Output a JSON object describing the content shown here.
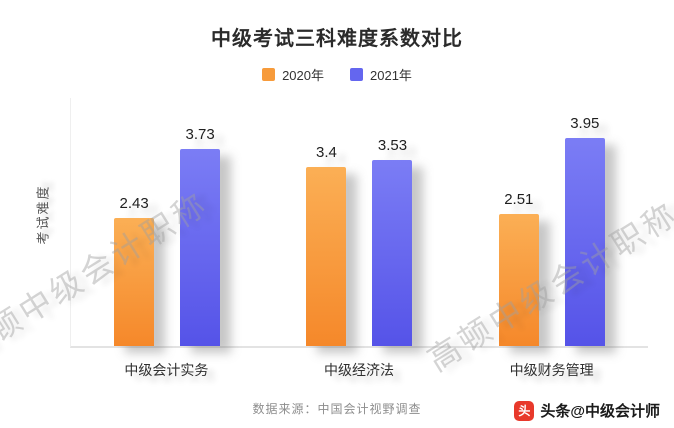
{
  "chart_data": {
    "type": "bar",
    "title": "中级考试三科难度系数对比",
    "ylabel": "考试难度",
    "categories": [
      "中级会计实务",
      "中级经济法",
      "中级财务管理"
    ],
    "series": [
      {
        "name": "2020年",
        "values": [
          2.43,
          3.4,
          2.51
        ],
        "color": "#F79B3B",
        "color_top": "#FBAF55",
        "color_bottom": "#F5882A"
      },
      {
        "name": "2021年",
        "values": [
          3.73,
          3.53,
          3.95
        ],
        "color": "#6466EF",
        "color_top": "#7B7DF5",
        "color_bottom": "#5553E8"
      }
    ],
    "ylim": [
      0,
      4.7
    ],
    "grid": false,
    "legend_position": "top"
  },
  "watermark": {
    "text": "高顿中级会计职称"
  },
  "footer": {
    "source": "数据来源：中国会计视野调查",
    "brand_label": "头条@中级会计师",
    "brand_icon_glyph": "头",
    "brand_color": "#e8392b"
  }
}
